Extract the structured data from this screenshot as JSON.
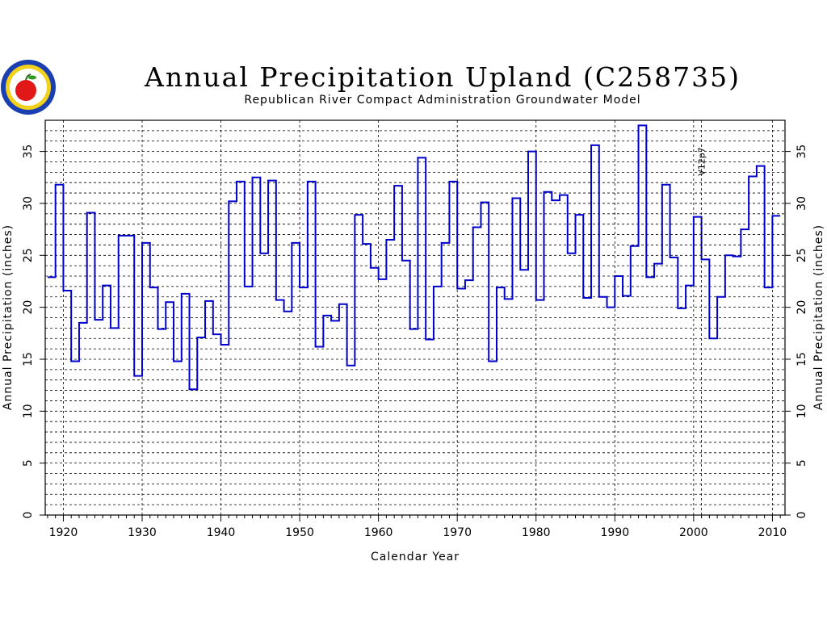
{
  "chart_data": {
    "type": "line",
    "style": "step",
    "title": "Annual Precipitation Upland (C258735)",
    "subtitle": "Republican River Compact Administration Groundwater Model",
    "xlabel": "Calendar Year",
    "ylabel": "Annual Precipitation (inches)",
    "xlim": [
      1917.7,
      2011.6
    ],
    "ylim": [
      0,
      38
    ],
    "xticks": [
      1920,
      1930,
      1940,
      1950,
      1960,
      1970,
      1980,
      1990,
      2000,
      2010
    ],
    "yticks": [
      0,
      5,
      10,
      15,
      20,
      25,
      30,
      35
    ],
    "grid": true,
    "annotation": {
      "text": "V12p7",
      "x": 2001
    },
    "series": [
      {
        "color": "#0000cc",
        "x": [
          1918,
          1919,
          1920,
          1921,
          1922,
          1923,
          1924,
          1925,
          1926,
          1927,
          1928,
          1929,
          1930,
          1931,
          1932,
          1933,
          1934,
          1935,
          1936,
          1937,
          1938,
          1939,
          1940,
          1941,
          1942,
          1943,
          1944,
          1945,
          1946,
          1947,
          1948,
          1949,
          1950,
          1951,
          1952,
          1953,
          1954,
          1955,
          1956,
          1957,
          1958,
          1959,
          1960,
          1961,
          1962,
          1963,
          1964,
          1965,
          1966,
          1967,
          1968,
          1969,
          1970,
          1971,
          1972,
          1973,
          1974,
          1975,
          1976,
          1977,
          1978,
          1979,
          1980,
          1981,
          1982,
          1983,
          1984,
          1985,
          1986,
          1987,
          1988,
          1989,
          1990,
          1991,
          1992,
          1993,
          1994,
          1995,
          1996,
          1997,
          1998,
          1999,
          2000,
          2001,
          2002,
          2003,
          2004,
          2005,
          2006,
          2007,
          2008,
          2009,
          2010
        ],
        "values": [
          22.9,
          31.8,
          21.6,
          14.8,
          18.5,
          29.1,
          18.8,
          22.1,
          18.0,
          26.9,
          26.9,
          13.4,
          26.2,
          21.9,
          17.9,
          20.5,
          14.8,
          21.3,
          12.1,
          17.1,
          20.6,
          17.4,
          16.4,
          30.2,
          32.1,
          22.0,
          32.5,
          25.2,
          32.2,
          20.7,
          19.6,
          26.2,
          21.9,
          32.1,
          16.2,
          19.2,
          18.7,
          20.3,
          14.4,
          28.9,
          26.1,
          23.8,
          22.7,
          26.5,
          31.7,
          24.5,
          17.9,
          34.4,
          16.9,
          22.0,
          26.2,
          32.1,
          21.8,
          22.6,
          27.7,
          30.1,
          14.8,
          21.9,
          20.8,
          30.5,
          23.6,
          35.0,
          20.7,
          31.1,
          30.3,
          30.8,
          25.2,
          28.9,
          20.9,
          35.6,
          21.0,
          20.0,
          23.0,
          21.1,
          25.9,
          37.5,
          22.9,
          24.2,
          31.8,
          24.8,
          19.9,
          22.1,
          28.7,
          24.6,
          17.0,
          21.0,
          25.0,
          24.9,
          27.5,
          32.6,
          33.6,
          21.9,
          28.8
        ]
      }
    ]
  }
}
